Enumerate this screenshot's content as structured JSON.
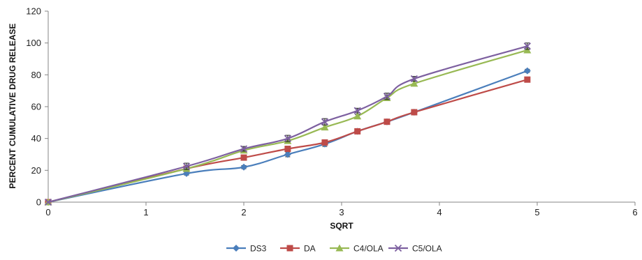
{
  "chart_data": {
    "type": "line",
    "xlabel": "SQRT",
    "ylabel": "PERCENT  CUMULATIVE  DRUG  RELEASE",
    "xlim": [
      0,
      6
    ],
    "ylim": [
      0,
      120
    ],
    "x_ticks": [
      "0",
      "1",
      "2",
      "3",
      "4",
      "5",
      "6"
    ],
    "y_ticks": [
      "0",
      "20",
      "40",
      "60",
      "80",
      "100",
      "120"
    ],
    "grid": false,
    "legend_position": "bottom",
    "x": [
      0,
      1.414,
      2,
      2.449,
      2.828,
      3.162,
      3.464,
      3.742,
      4.899
    ],
    "series": [
      {
        "name": "DS3",
        "color": "#4a7ebb",
        "marker": "diamond",
        "values": [
          0,
          18,
          22,
          30,
          36.5,
          44.5,
          50.5,
          56.5,
          82.5
        ],
        "errors": [
          0,
          1,
          1,
          1.5,
          1.5,
          1,
          1,
          1,
          1
        ]
      },
      {
        "name": "DA",
        "color": "#be4b48",
        "marker": "square",
        "values": [
          0,
          21,
          28,
          33.5,
          37.5,
          44.5,
          50.5,
          56.5,
          77
        ],
        "errors": [
          0,
          1,
          1,
          1,
          1,
          1,
          1,
          1.5,
          1
        ]
      },
      {
        "name": "C4/OLA",
        "color": "#98b954",
        "marker": "triangle",
        "values": [
          0,
          21,
          32.5,
          38.5,
          47,
          54,
          65.5,
          74.5,
          95.5
        ],
        "errors": [
          0,
          1,
          1,
          1,
          1.5,
          1,
          1.5,
          1.5,
          1.5
        ]
      },
      {
        "name": "C5/OLA",
        "color": "#7d60a0",
        "marker": "x",
        "values": [
          0,
          22.5,
          33.5,
          40,
          50.5,
          57.5,
          66.5,
          77.5,
          98
        ],
        "errors": [
          0,
          2,
          1.5,
          2,
          2,
          1.5,
          2,
          1.5,
          2
        ]
      }
    ]
  }
}
